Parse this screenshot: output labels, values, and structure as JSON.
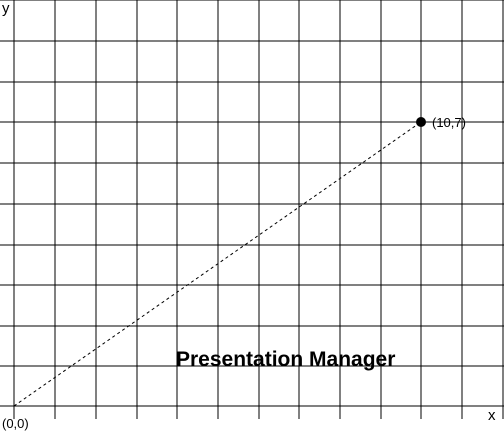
{
  "axes": {
    "x_label": "x",
    "y_label": "y"
  },
  "points": {
    "origin": {
      "x": 0,
      "y": 0,
      "label": "(0,0)"
    },
    "target": {
      "x": 10,
      "y": 7,
      "label": "(10,7)"
    }
  },
  "banner": "Presentation Manager"
}
